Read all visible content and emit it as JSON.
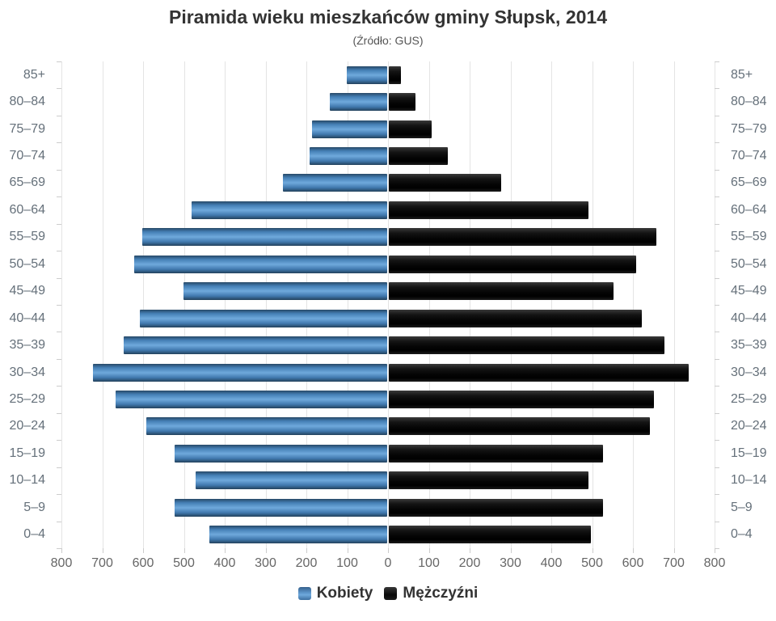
{
  "title": "Piramida wieku mieszkańców gminy Słupsk, 2014",
  "subtitle": "(Źródło: GUS)",
  "legend": {
    "women_label": "Kobiety",
    "men_label": "Mężczyźni"
  },
  "colors": {
    "women": "#4580b6",
    "men": "#111111",
    "grid": "#e4e4e4",
    "axis_label": "#666666",
    "title": "#333333"
  },
  "axis": {
    "tick_labels": [
      "800",
      "700",
      "600",
      "500",
      "400",
      "300",
      "200",
      "100",
      "0",
      "100",
      "200",
      "300",
      "400",
      "500",
      "600",
      "700",
      "800"
    ],
    "max_each_side": 800,
    "tick_interval": 100
  },
  "chart_data": {
    "type": "bar",
    "variant": "population-pyramid",
    "title": "Piramida wieku mieszkańców gminy Słupsk, 2014",
    "subtitle": "(Źródło: GUS)",
    "categories": [
      "85+",
      "80–84",
      "75–79",
      "70–74",
      "65–69",
      "60–64",
      "55–59",
      "50–54",
      "45–49",
      "40–44",
      "35–39",
      "30–34",
      "25–29",
      "20–24",
      "15–19",
      "10–14",
      "5–9",
      "0–4"
    ],
    "series": [
      {
        "name": "Kobiety",
        "side": "left",
        "color": "#4580b6",
        "values": [
          100,
          140,
          185,
          190,
          255,
          480,
          600,
          620,
          500,
          605,
          645,
          720,
          665,
          590,
          520,
          470,
          520,
          435
        ]
      },
      {
        "name": "Mężczyźni",
        "side": "right",
        "color": "#111111",
        "values": [
          30,
          65,
          105,
          145,
          275,
          490,
          655,
          605,
          550,
          620,
          675,
          735,
          650,
          640,
          525,
          490,
          525,
          495
        ]
      }
    ],
    "xlim": [
      -800,
      800
    ],
    "xlabel": "",
    "ylabel": "",
    "grid": true,
    "legend_position": "bottom"
  }
}
